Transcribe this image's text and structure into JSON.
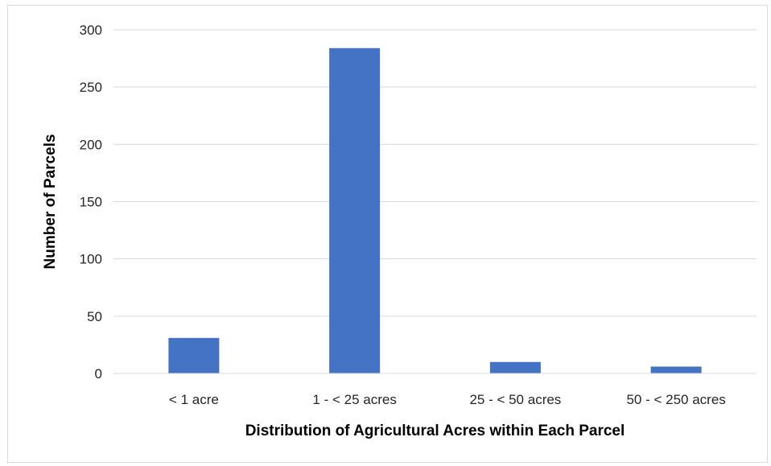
{
  "chart_data": {
    "type": "bar",
    "categories": [
      "< 1 acre",
      "1 - < 25 acres",
      "25 - < 50 acres",
      "50 - < 250 acres"
    ],
    "values": [
      31,
      284,
      10,
      6
    ],
    "title": "",
    "xlabel": "Distribution of Agricultural Acres within Each Parcel",
    "ylabel": "Number of Parcels",
    "ylim": [
      0,
      300
    ],
    "yticks": [
      0,
      50,
      100,
      150,
      200,
      250,
      300
    ],
    "grid": true,
    "legend": "none",
    "bar_color": "#4472C4",
    "grid_color": "#d9d9d9"
  }
}
